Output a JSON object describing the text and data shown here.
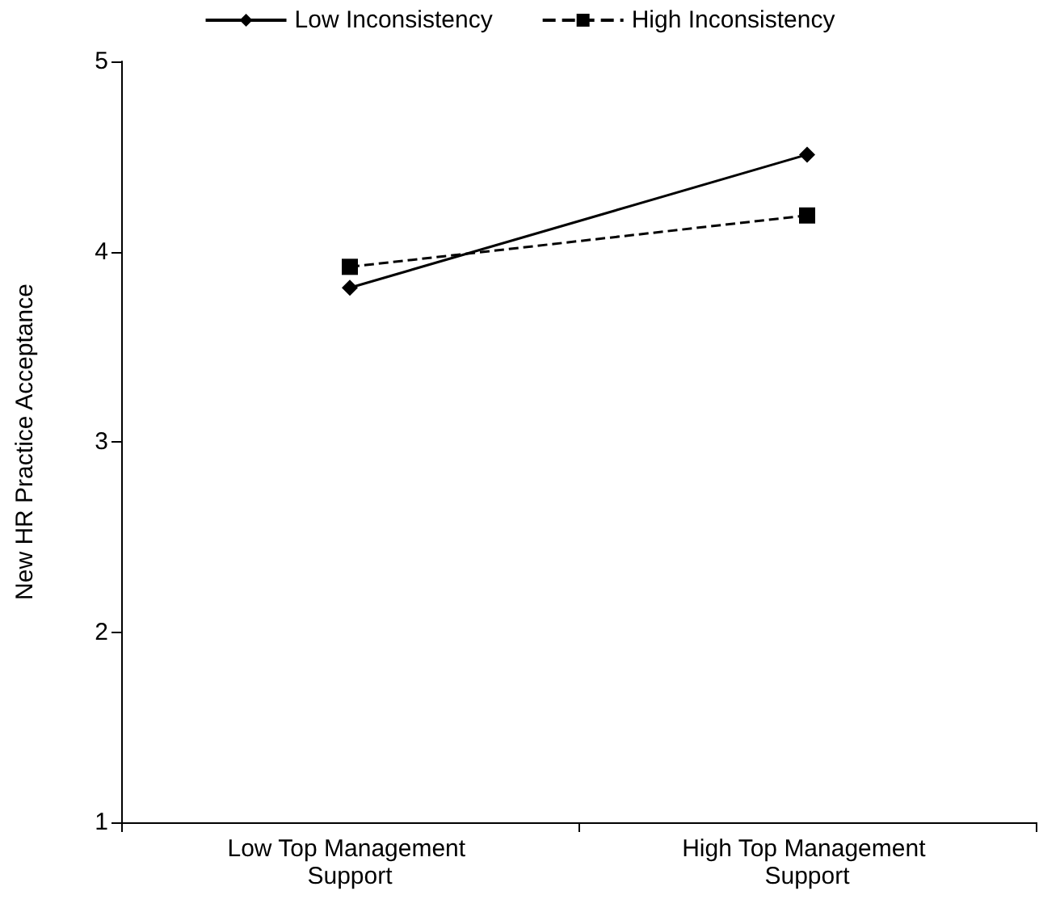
{
  "chart_data": {
    "type": "line",
    "ylabel": "New HR Practice Acceptance",
    "categories": [
      "Low Top Management Support",
      "High Top Management Support"
    ],
    "series": [
      {
        "name": "Low Inconsistency",
        "color": "#000000",
        "values": [
          3.81,
          4.51
        ],
        "marker": "diamond",
        "line_style": "solid"
      },
      {
        "name": "High Inconsistency",
        "color": "#000000",
        "values": [
          3.92,
          4.19
        ],
        "marker": "square",
        "line_style": "dashed"
      }
    ],
    "ylim": [
      1,
      5
    ],
    "yticks": [
      1,
      2,
      3,
      4,
      5
    ],
    "grid": false,
    "legend": "top"
  }
}
